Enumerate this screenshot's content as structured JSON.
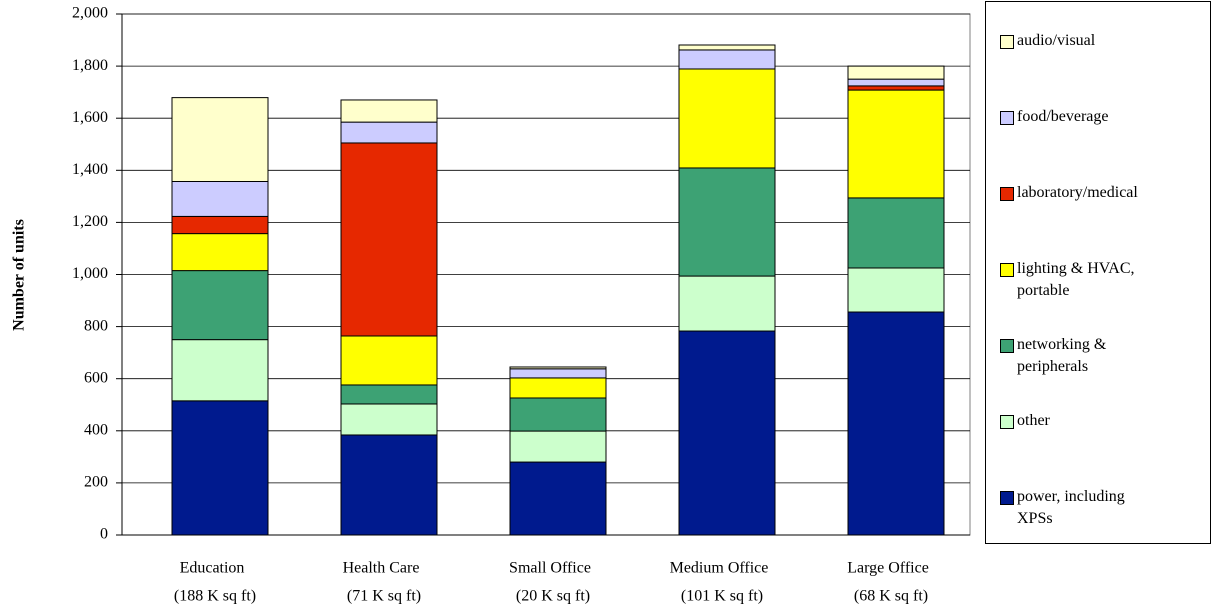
{
  "chart_data": {
    "type": "stacked-bar",
    "y_label": "Number of units",
    "categories": [
      [
        "Education",
        "(188 K sq ft)"
      ],
      [
        "Health Care",
        "(71 K sq ft)"
      ],
      [
        "Small Office",
        "(20 K sq ft)"
      ],
      [
        "Medium Office",
        "(101 K sq ft)"
      ],
      [
        "Large Office",
        "(68 K sq ft)"
      ]
    ],
    "series": [
      {
        "name": "power, including XPSs",
        "color": "#001a8e",
        "values": [
          515,
          384,
          280,
          783,
          856
        ]
      },
      {
        "name": "other",
        "color": "#ccffcc",
        "values": [
          235,
          119,
          119,
          211,
          169
        ]
      },
      {
        "name": "networking & peripherals",
        "color": "#3da274",
        "values": [
          265,
          73,
          127,
          415,
          269
        ]
      },
      {
        "name": "lighting & HVAC, portable",
        "color": "#ffff00",
        "values": [
          142,
          188,
          77,
          380,
          414
        ]
      },
      {
        "name": "laboratory/medical",
        "color": "#e62800",
        "values": [
          66,
          741,
          0,
          0,
          16
        ]
      },
      {
        "name": "food/beverage",
        "color": "#ccccff",
        "values": [
          134,
          80,
          35,
          73,
          26
        ]
      },
      {
        "name": "audio/visual",
        "color": "#ffffcc",
        "values": [
          322,
          85,
          7,
          19,
          50
        ]
      }
    ],
    "ylim": [
      0,
      2000
    ],
    "yticks": [
      0,
      200,
      400,
      600,
      800,
      {
        "value": 1000,
        "label": "1,000"
      },
      {
        "value": 1200,
        "label": "1,200"
      },
      {
        "value": 1400,
        "label": "1,400"
      },
      {
        "value": 1600,
        "label": "1,600"
      },
      {
        "value": 1800,
        "label": "1,800"
      },
      {
        "value": 2000,
        "label": "2,000"
      }
    ],
    "grid": true,
    "legend": "right"
  }
}
